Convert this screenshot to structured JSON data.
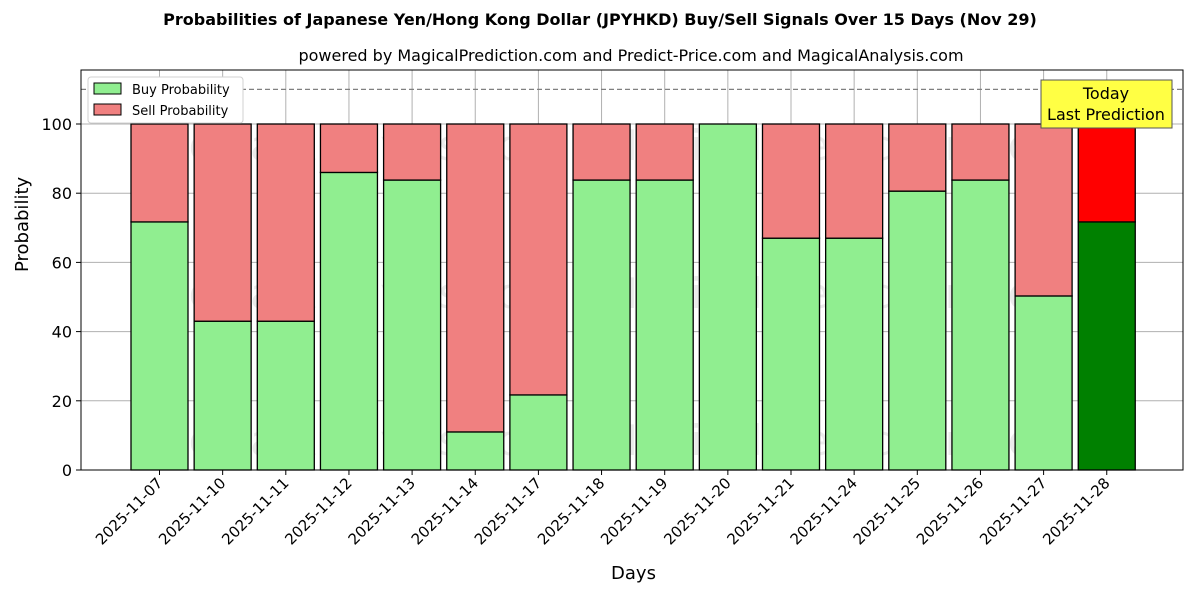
{
  "chart_data": {
    "type": "bar",
    "stacked": true,
    "title": "Probabilities of Japanese Yen/Hong Kong Dollar (JPYHKD) Buy/Sell Signals Over 15 Days (Nov 29)",
    "subtitle": "powered by MagicalPrediction.com and Predict-Price.com and MagicalAnalysis.com",
    "xlabel": "Days",
    "ylabel": "Probability",
    "ylim": [
      0,
      115
    ],
    "yticks": [
      0,
      20,
      40,
      60,
      80,
      100
    ],
    "grid": true,
    "legend_position": "upper left",
    "reference_line": 110,
    "categories": [
      "2025-11-07",
      "2025-11-10",
      "2025-11-11",
      "2025-11-12",
      "2025-11-13",
      "2025-11-14",
      "2025-11-17",
      "2025-11-18",
      "2025-11-19",
      "2025-11-20",
      "2025-11-21",
      "2025-11-24",
      "2025-11-25",
      "2025-11-26",
      "2025-11-27",
      "2025-11-28"
    ],
    "series": [
      {
        "name": "Buy Probability",
        "color": "#90EE90",
        "values": [
          71.7,
          43.0,
          43.0,
          86.0,
          83.8,
          11.0,
          21.7,
          83.8,
          83.8,
          100.0,
          67.0,
          67.0,
          80.6,
          83.8,
          50.3,
          71.7
        ]
      },
      {
        "name": "Sell Probability",
        "color": "#F08080",
        "values": [
          28.3,
          57.0,
          57.0,
          14.0,
          16.2,
          89.0,
          78.3,
          16.2,
          16.2,
          0.0,
          33.0,
          33.0,
          19.4,
          16.2,
          49.7,
          28.3
        ]
      }
    ],
    "highlight": {
      "index": 15,
      "buy_color": "#008000",
      "sell_color": "#FF0000"
    },
    "annotation": {
      "text_line1": "Today",
      "text_line2": "Last Prediction",
      "bg": "#FFFF44"
    },
    "watermarks": [
      "MagicalAnalysis.com",
      "MagicalPrediction.com"
    ]
  }
}
